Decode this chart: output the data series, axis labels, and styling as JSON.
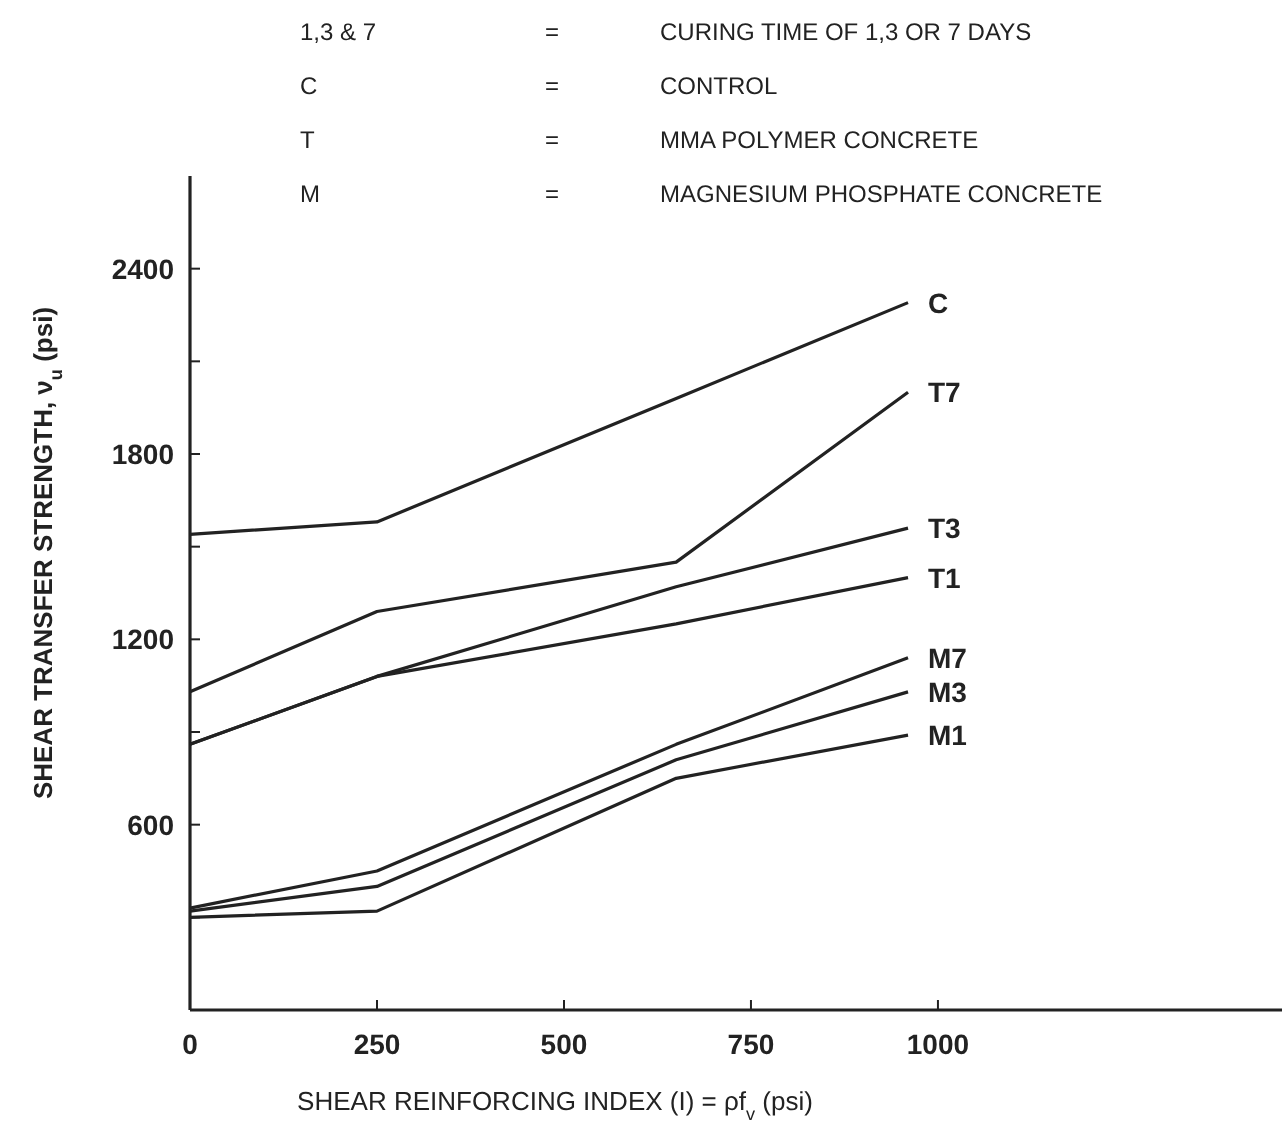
{
  "chart_data": {
    "type": "line",
    "xlabel": "SHEAR REINFORCING INDEX (I) = ρf$_{v}$  (psi)",
    "ylabel": "SHEAR TRANSFER STRENGTH, ν$_{u}$ (psi)",
    "x": [
      0,
      250,
      650,
      960
    ],
    "series": [
      {
        "name": "C",
        "color": "#222222",
        "values": [
          1540,
          1580,
          1980,
          2290
        ]
      },
      {
        "name": "T7",
        "color": "#222222",
        "values": [
          1030,
          1290,
          1450,
          2000
        ]
      },
      {
        "name": "T3",
        "color": "#222222",
        "values": [
          860,
          1080,
          1370,
          1560
        ]
      },
      {
        "name": "T1",
        "color": "#222222",
        "values": [
          860,
          1080,
          1250,
          1400
        ]
      },
      {
        "name": "M7",
        "color": "#222222",
        "values": [
          330,
          450,
          860,
          1140
        ]
      },
      {
        "name": "M3",
        "color": "#222222",
        "values": [
          320,
          400,
          810,
          1030
        ]
      },
      {
        "name": "M1",
        "color": "#222222",
        "values": [
          300,
          320,
          750,
          890
        ]
      }
    ],
    "xlim": [
      0,
      1460
    ],
    "ylim": [
      0,
      2700
    ],
    "xticks": [
      0,
      250,
      500,
      750,
      1000
    ],
    "yticks": [
      {
        "value": 300,
        "label": null
      },
      600,
      {
        "value": 900,
        "label": null
      },
      1200,
      {
        "value": 1500,
        "label": null
      },
      1800,
      {
        "value": 2100,
        "label": null
      },
      2400
    ],
    "annotations": [
      "1,3 & 7 = CURING TIME OF 1,3 OR 7 DAYS",
      "C = CONTROL",
      "T = MMA POLYMER CONCRETE",
      "M = MAGNESIUM PHOSPHATE CONCRETE"
    ],
    "grid": false,
    "marker": "none",
    "line_style": "solid"
  }
}
